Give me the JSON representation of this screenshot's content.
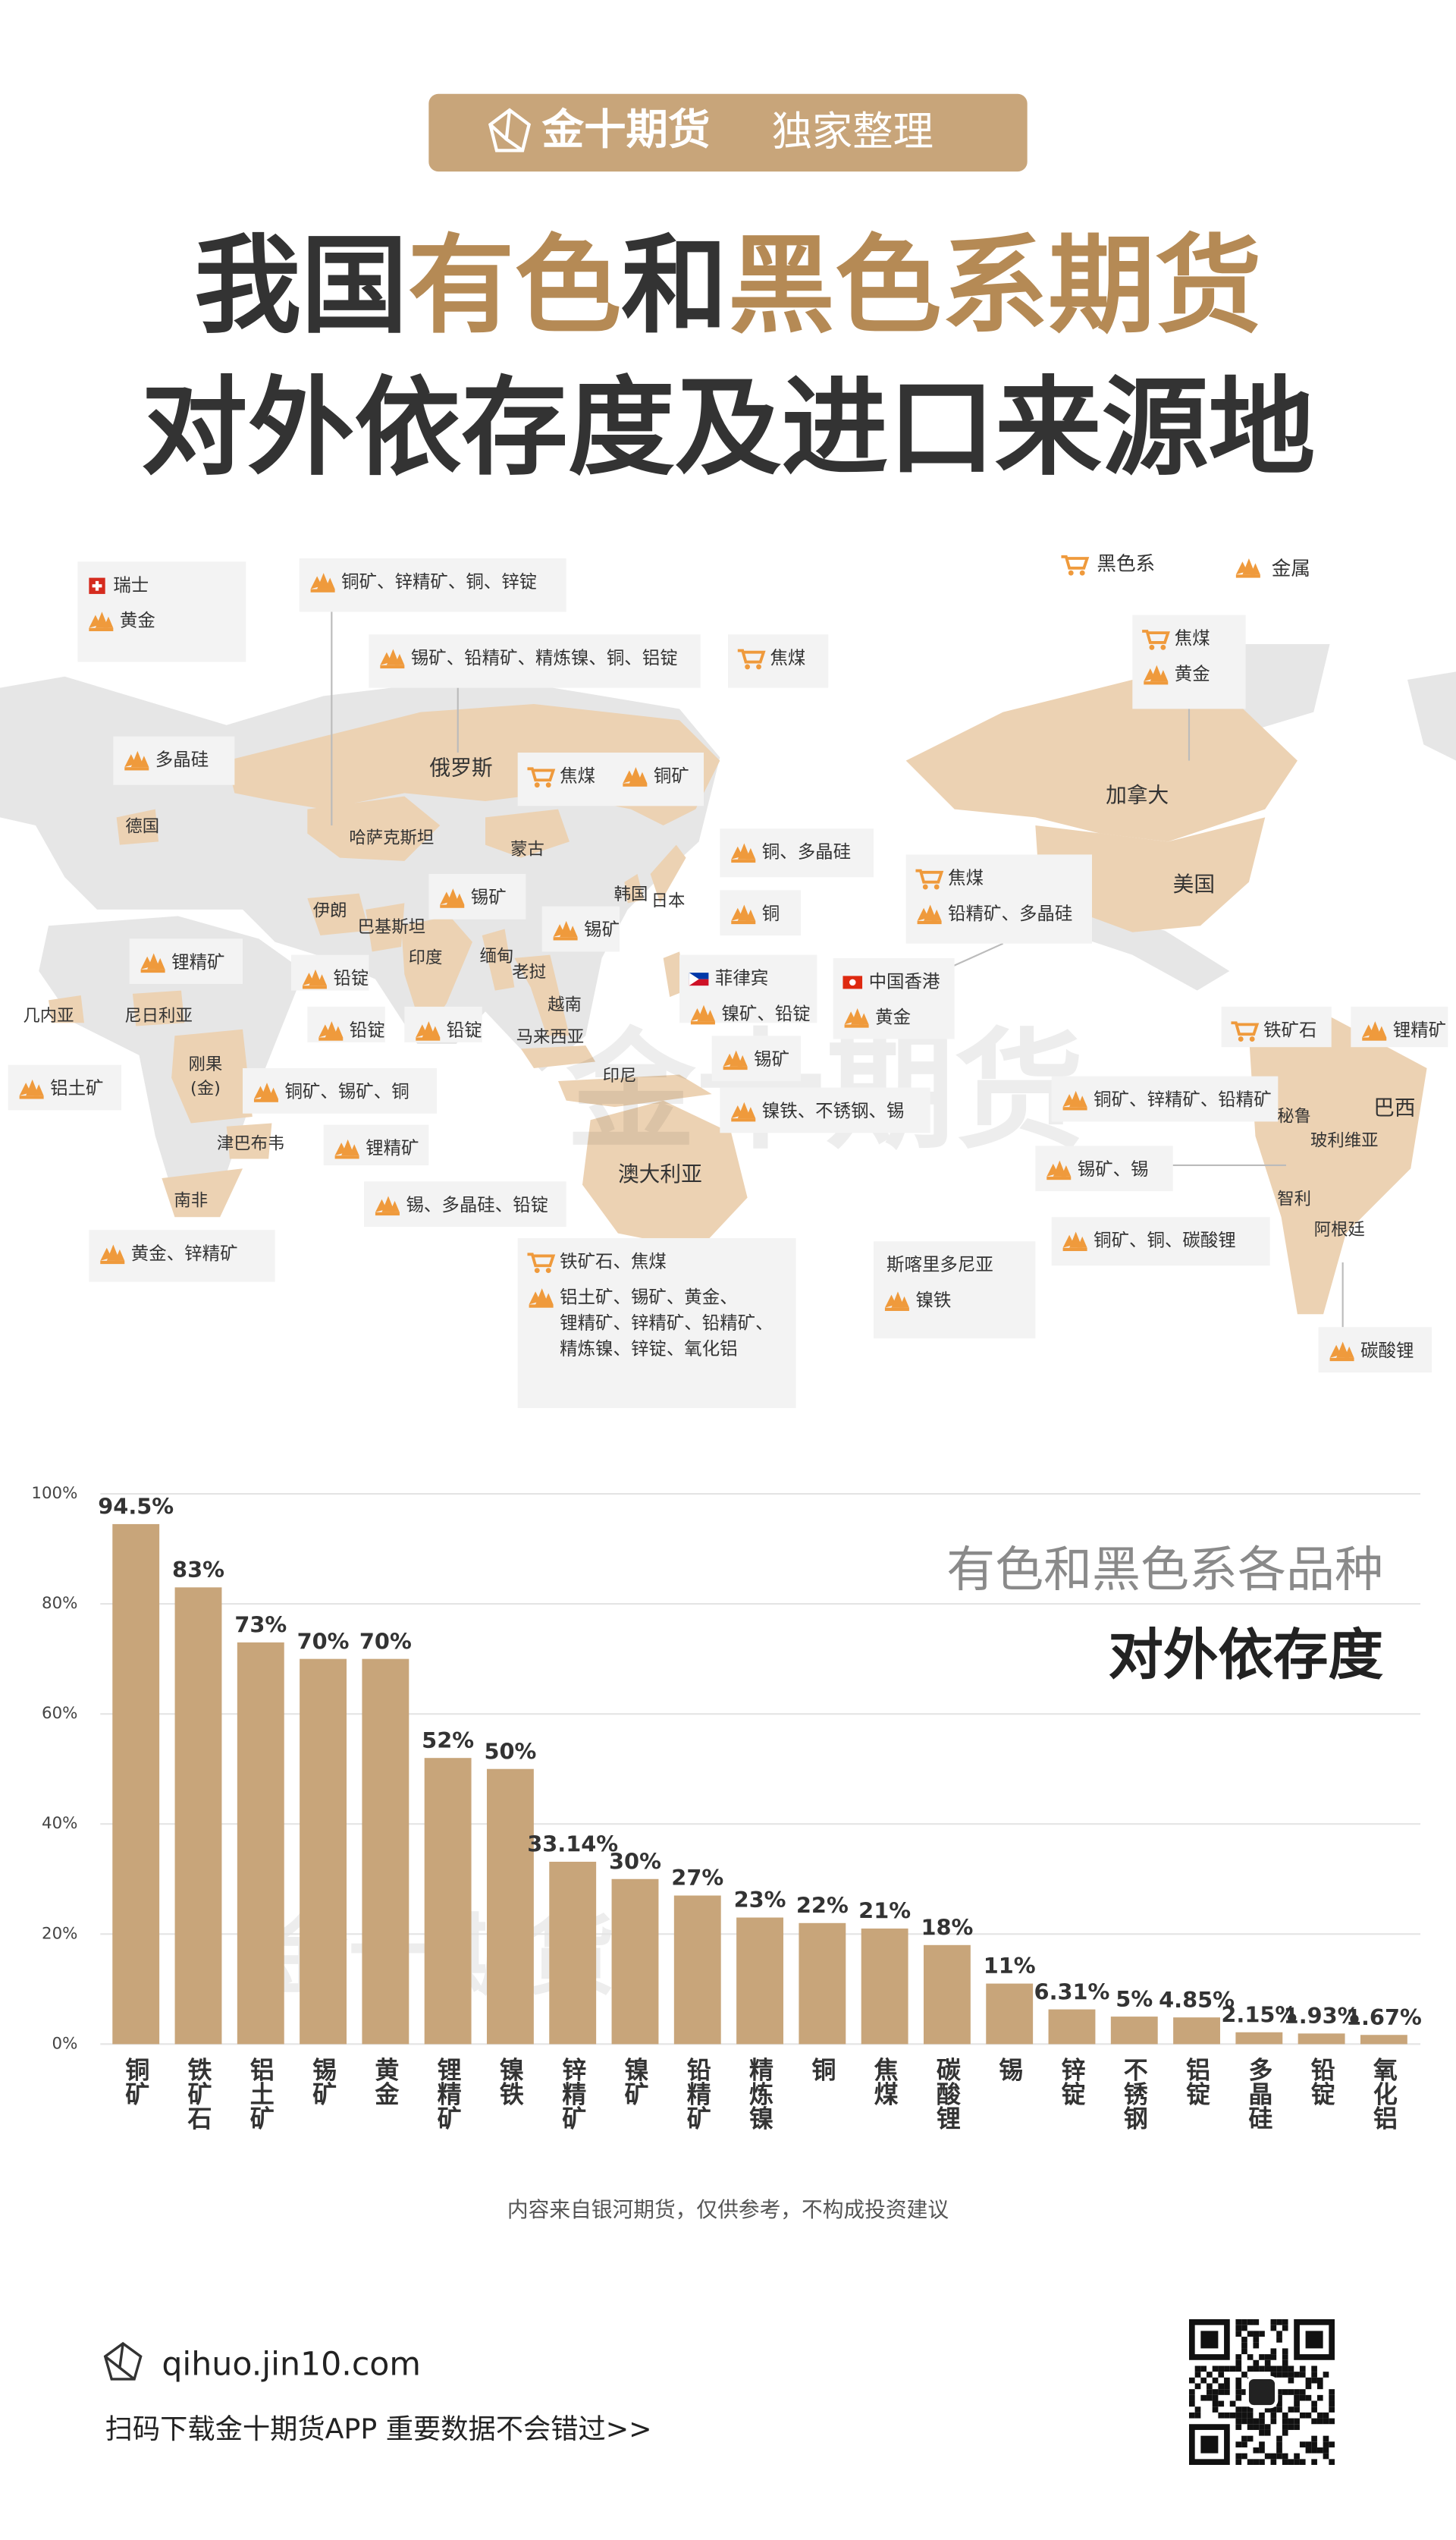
{
  "header": {
    "brand": "金十期货",
    "tag": "独家整理",
    "title": {
      "line1": [
        "我国",
        "有色",
        "和",
        "黑色系期货"
      ],
      "line2": "对外依存度及进口来源地"
    }
  },
  "map": {
    "legend": [
      "黑色系",
      "金属"
    ],
    "countries": [
      "俄罗斯",
      "加拿大",
      "美国",
      "哈萨克斯坦",
      "蒙古",
      "韩国",
      "日本",
      "伊朗",
      "巴基斯坦",
      "印度",
      "缅甸",
      "老挝",
      "越南",
      "马来西亚",
      "印尼",
      "澳大利亚",
      "德国",
      "几内亚",
      "尼日利亚",
      "刚果",
      "(金)",
      "津巴布韦",
      "南非",
      "秘鲁",
      "玻利维亚",
      "巴西",
      "智利",
      "阿根廷"
    ],
    "callouts": [
      {
        "title": "瑞士",
        "metal": [
          "黄金"
        ]
      },
      {
        "metal": [
          "铜矿、锌精矿、铜、锌锭"
        ]
      },
      {
        "metal": [
          "锡矿、铅精矿、精炼镍、铜、铝锭"
        ]
      },
      {
        "black": "焦煤"
      },
      {
        "black": "焦煤",
        "metal": [
          "黄金"
        ]
      },
      {
        "metal": [
          "多晶硅"
        ]
      },
      {
        "black": "焦煤",
        "metal": [
          "铜矿"
        ]
      },
      {
        "metal": [
          "铜、多晶硅"
        ]
      },
      {
        "metal": [
          "锡矿"
        ]
      },
      {
        "metal": [
          "铜"
        ]
      },
      {
        "black": "焦煤",
        "metal": [
          "铅精矿、多晶硅"
        ]
      },
      {
        "metal": [
          "锡矿"
        ]
      },
      {
        "metal": [
          "锂精矿"
        ]
      },
      {
        "metal": [
          "铅锭"
        ]
      },
      {
        "metal": [
          "铅锭"
        ]
      },
      {
        "metal": [
          "铅锭"
        ]
      },
      {
        "title": "菲律宾",
        "metal": [
          "镍矿、铅锭"
        ]
      },
      {
        "title": "中国香港",
        "metal": [
          "黄金"
        ]
      },
      {
        "black": "铁矿石"
      },
      {
        "metal": [
          "锂精矿"
        ]
      },
      {
        "metal": [
          "铝土矿"
        ]
      },
      {
        "metal": [
          "铜矿、锡矿、铜"
        ]
      },
      {
        "metal": [
          "锡矿"
        ]
      },
      {
        "metal": [
          "镍铁、不锈钢、锡"
        ]
      },
      {
        "metal": [
          "铜矿、锌精矿、铅精矿"
        ]
      },
      {
        "metal": [
          "锂精矿"
        ]
      },
      {
        "metal": [
          "锡矿、锡"
        ]
      },
      {
        "metal": [
          "锡、多晶硅、铅锭"
        ]
      },
      {
        "metal": [
          "铜矿、铜、碳酸锂"
        ]
      },
      {
        "metal": [
          "黄金、锌精矿"
        ]
      },
      {
        "black": "铁矿石、焦煤",
        "metal": [
          "铝土矿、锡矿、黄金、",
          "锂精矿、锌精矿、铅精矿、",
          "精炼镍、锌锭、氧化铝"
        ]
      },
      {
        "title": "斯喀里多尼亚",
        "metal": [
          "镍铁"
        ]
      },
      {
        "metal": [
          "碳酸锂"
        ]
      }
    ]
  },
  "chart_data": {
    "type": "bar",
    "title": "有色和黑色系各品种",
    "subtitle": "对外依存度",
    "categories": [
      "铜矿",
      "铁矿石",
      "铝土矿",
      "锡矿",
      "黄金",
      "锂精矿",
      "镍铁",
      "锌精矿",
      "镍矿",
      "铅精矿",
      "精炼镍",
      "铜",
      "焦煤",
      "碳酸锂",
      "锡",
      "锌锭",
      "不锈钢",
      "铝锭",
      "多晶硅",
      "铅锭",
      "氧化铝"
    ],
    "values": [
      94.5,
      83,
      73,
      70,
      70,
      52,
      50,
      33.14,
      30,
      27,
      23,
      22,
      21,
      18,
      11,
      6.31,
      5,
      4.85,
      2.15,
      1.93,
      1.67
    ],
    "value_labels": [
      "94.5%",
      "83%",
      "73%",
      "70%",
      "70%",
      "52%",
      "50%",
      "33.14%",
      "30%",
      "27%",
      "23%",
      "22%",
      "21%",
      "18%",
      "11%",
      "6.31%",
      "5%",
      "4.85%",
      "2.15%",
      "1.93%",
      "1.67%"
    ],
    "color": "#c8a57a",
    "ylim": [
      0,
      100
    ],
    "yticks": [
      {
        "value": 0,
        "label": "0%"
      },
      {
        "value": 20,
        "label": "20%"
      },
      {
        "value": 40,
        "label": "40%"
      },
      {
        "value": 60,
        "label": "60%"
      },
      {
        "value": 80,
        "label": "80%"
      },
      {
        "value": 100,
        "label": "100%"
      }
    ],
    "grid": true
  },
  "note": "内容来自银河期货，仅供参考，不构成投资建议",
  "footer": {
    "url": "qihuo.jin10.com",
    "slogan": "扫码下载金十期货APP 重要数据不会错过>>"
  }
}
